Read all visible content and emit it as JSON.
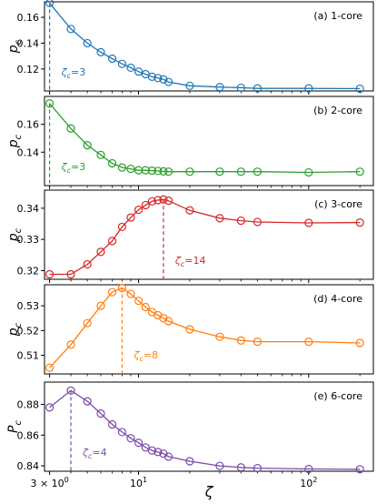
{
  "chart_data": {
    "xlabel": "ζ",
    "x_scale": "log",
    "xlim": [
      2.8,
      240
    ],
    "x_ticks": [
      {
        "value": 3,
        "label": "3 × 10",
        "exp": "0"
      },
      {
        "value": 10,
        "label": "10",
        "exp": "1"
      },
      {
        "value": 100,
        "label": "10",
        "exp": "2"
      }
    ],
    "panels": [
      {
        "type": "line",
        "title": "(a) 1-core",
        "ylabel": "p",
        "ylabel_sub": "c",
        "color": "#1f77b4",
        "ylim": [
          0.103,
          0.172
        ],
        "yticks": [
          0.12,
          0.14,
          0.16
        ],
        "ytick_labels": [
          "0.12",
          "0.14",
          "0.16"
        ],
        "x": [
          3,
          4,
          5,
          6,
          7,
          8,
          9,
          10,
          11,
          12,
          13,
          14,
          15,
          20,
          30,
          40,
          50,
          100,
          200
        ],
        "y": [
          0.171,
          0.151,
          0.14,
          0.133,
          0.128,
          0.124,
          0.121,
          0.118,
          0.116,
          0.114,
          0.113,
          0.112,
          0.11,
          0.107,
          0.106,
          0.1055,
          0.105,
          0.105,
          0.1048
        ],
        "critical": {
          "x": 3,
          "y": 0.171,
          "label": "ζ",
          "label_sub": "c",
          "label_val": "=3"
        }
      },
      {
        "type": "line",
        "title": "(b) 2-core",
        "ylabel": "p",
        "ylabel_sub": "c",
        "color": "#2ca02c",
        "ylim": [
          0.116,
          0.18
        ],
        "yticks": [
          0.14,
          0.16
        ],
        "ytick_labels": [
          "0.14",
          "0.16"
        ],
        "x": [
          3,
          4,
          5,
          6,
          7,
          8,
          9,
          10,
          11,
          12,
          13,
          14,
          15,
          20,
          30,
          40,
          50,
          100,
          200
        ],
        "y": [
          0.175,
          0.157,
          0.145,
          0.138,
          0.132,
          0.129,
          0.128,
          0.127,
          0.127,
          0.1267,
          0.1265,
          0.1262,
          0.126,
          0.126,
          0.126,
          0.126,
          0.126,
          0.1255,
          0.126
        ],
        "critical": {
          "x": 3,
          "y": 0.175,
          "label": "ζ",
          "label_sub": "c",
          "label_val": "=3"
        }
      },
      {
        "type": "line",
        "title": "(c) 3-core",
        "ylabel": "p",
        "ylabel_sub": "c",
        "color": "#d62728",
        "ylim": [
          0.3172,
          0.3458
        ],
        "yticks": [
          0.32,
          0.33,
          0.34
        ],
        "ytick_labels": [
          "0.32",
          "0.33",
          "0.34"
        ],
        "x": [
          3,
          4,
          5,
          6,
          7,
          8,
          9,
          10,
          11,
          12,
          13,
          14,
          15,
          20,
          30,
          40,
          50,
          100,
          200
        ],
        "y": [
          0.3188,
          0.3188,
          0.322,
          0.326,
          0.3295,
          0.334,
          0.337,
          0.3395,
          0.341,
          0.3422,
          0.3426,
          0.3428,
          0.3424,
          0.3393,
          0.3368,
          0.336,
          0.3356,
          0.3353,
          0.3354
        ],
        "critical": {
          "x": 14,
          "y": 0.3428,
          "label": "ζ",
          "label_sub": "c",
          "label_val": "=14"
        }
      },
      {
        "type": "line",
        "title": "(d) 4-core",
        "ylabel": "p",
        "ylabel_sub": "c",
        "color": "#ff7f0e",
        "ylim": [
          0.5025,
          0.5385
        ],
        "yticks": [
          0.51,
          0.52,
          0.53
        ],
        "ytick_labels": [
          "0.51",
          "0.52",
          "0.53"
        ],
        "x": [
          3,
          4,
          5,
          6,
          7,
          8,
          9,
          10,
          11,
          12,
          13,
          14,
          15,
          20,
          30,
          40,
          50,
          100,
          200
        ],
        "y": [
          0.505,
          0.5143,
          0.523,
          0.53,
          0.5355,
          0.5372,
          0.5348,
          0.532,
          0.5295,
          0.5275,
          0.5262,
          0.525,
          0.5238,
          0.5205,
          0.5175,
          0.516,
          0.5155,
          0.5155,
          0.515
        ],
        "critical": {
          "x": 8,
          "y": 0.5372,
          "label": "ζ",
          "label_sub": "c",
          "label_val": "=8"
        }
      },
      {
        "type": "line",
        "title": "(e) 6-core",
        "ylabel": "P",
        "ylabel_sub": "c",
        "color": "#7b4aa9",
        "ylim": [
          0.8365,
          0.8945
        ],
        "yticks": [
          0.84,
          0.86,
          0.88
        ],
        "ytick_labels": [
          "0.84",
          "0.86",
          "0.88"
        ],
        "x": [
          3,
          4,
          5,
          6,
          7,
          8,
          9,
          10,
          11,
          12,
          13,
          14,
          15,
          20,
          30,
          40,
          50,
          100,
          200
        ],
        "y": [
          0.878,
          0.889,
          0.882,
          0.874,
          0.867,
          0.862,
          0.858,
          0.855,
          0.852,
          0.85,
          0.849,
          0.848,
          0.846,
          0.843,
          0.84,
          0.839,
          0.8385,
          0.838,
          0.8378
        ],
        "critical": {
          "x": 4,
          "y": 0.889,
          "label": "ζ",
          "label_sub": "c",
          "label_val": "=4"
        }
      }
    ]
  }
}
